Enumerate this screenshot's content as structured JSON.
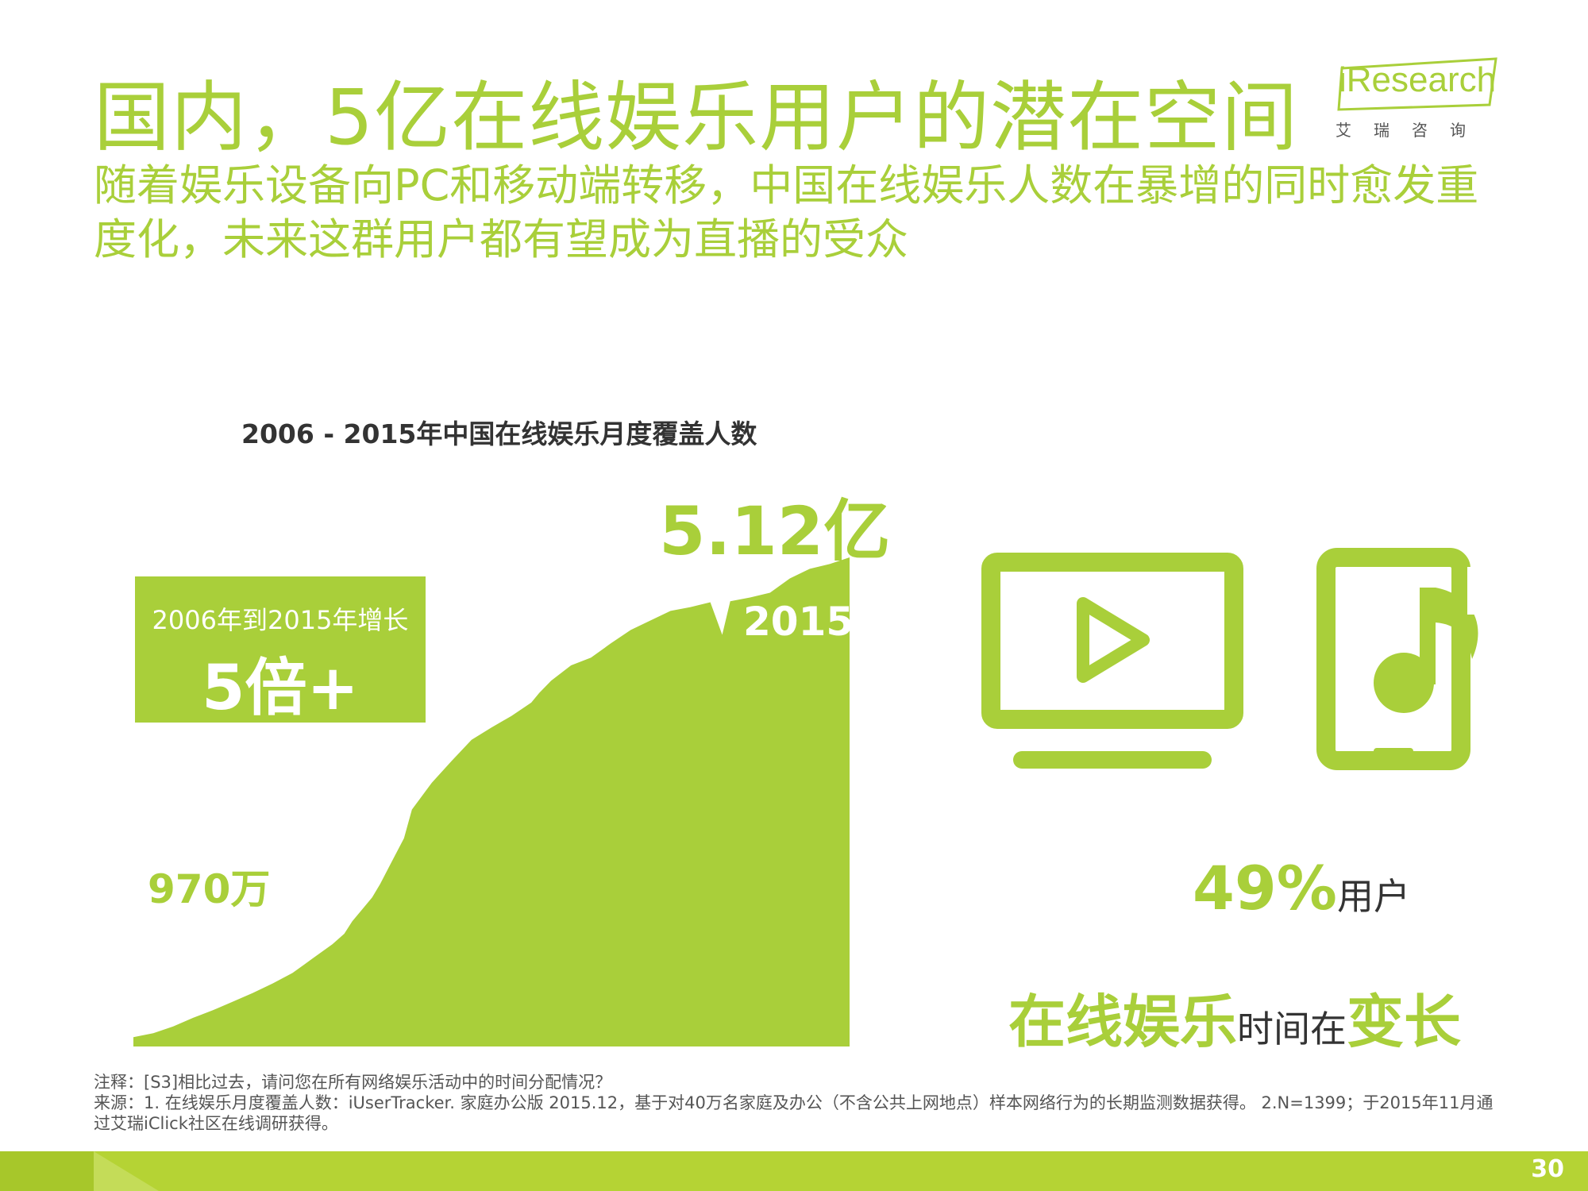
{
  "header": {
    "title": "国内，5亿在线娱乐用户的潜在空间",
    "subtitle": "随着娱乐设备向PC和移动端转移，中国在线娱乐人数在暴增的同时愈发重度化，未来这群用户都有望成为直播的受众"
  },
  "logo": {
    "text": "iResearch",
    "subtext": "艾瑞咨询"
  },
  "chart_data": {
    "type": "area",
    "title": "2006 - 2015年中国在线娱乐月度覆盖人数",
    "unit": "万",
    "x_range": [
      2006,
      2015
    ],
    "x": [
      2006.0,
      2006.25,
      2006.5,
      2006.75,
      2007.0,
      2007.25,
      2007.5,
      2007.75,
      2008.0,
      2008.25,
      2008.5,
      2008.65,
      2008.75,
      2009.0,
      2009.1,
      2009.25,
      2009.4,
      2009.5,
      2009.75,
      2010.0,
      2010.25,
      2010.5,
      2010.75,
      2011.0,
      2011.1,
      2011.25,
      2011.5,
      2011.75,
      2012.0,
      2012.25,
      2012.5,
      2012.75,
      2013.0,
      2013.25,
      2013.4,
      2013.5,
      2013.75,
      2014.0,
      2014.25,
      2014.5,
      2014.75,
      2015.0
    ],
    "y": [
      970,
      1400,
      2100,
      3000,
      3800,
      4700,
      5600,
      6600,
      7700,
      9200,
      10700,
      11800,
      13100,
      15600,
      17000,
      19400,
      21800,
      24800,
      27600,
      29900,
      32100,
      33400,
      34600,
      36000,
      37000,
      38300,
      39900,
      40700,
      42200,
      43600,
      44600,
      45600,
      46000,
      46500,
      43100,
      46600,
      47000,
      47500,
      49000,
      50000,
      50500,
      51200
    ]
  },
  "chart_labels": {
    "peak_value": "5.12亿",
    "start_value": "970万",
    "start_year": "2006",
    "end_year": "2015"
  },
  "growth_box": {
    "desc": "2006年到2015年增长",
    "value": "5倍+"
  },
  "icons": {
    "monitor": "video-monitor-icon",
    "phone": "music-phone-icon"
  },
  "stats": {
    "percent": "49%",
    "percent_suffix": "用户",
    "line2_a": "在线娱乐",
    "line2_b": "时间在",
    "line2_c": "变长"
  },
  "notes": {
    "line1": "注释：[S3]相比过去，请问您在所有网络娱乐活动中的时间分配情况？",
    "line2": "来源：1. 在线娱乐月度覆盖人数：iUserTracker. 家庭办公版 2015.12，基于对40万名家庭及办公（不含公共上网地点）样本网络行为的长期监测数据获得。 2.N=1399；于2015年11月通过艾瑞iClick社区在线调研获得。"
  },
  "footer": {
    "page_number": "30"
  },
  "colors": {
    "accent": "#a9cf3a",
    "dark_text": "#333333",
    "footer_bar": "#b5d334"
  }
}
